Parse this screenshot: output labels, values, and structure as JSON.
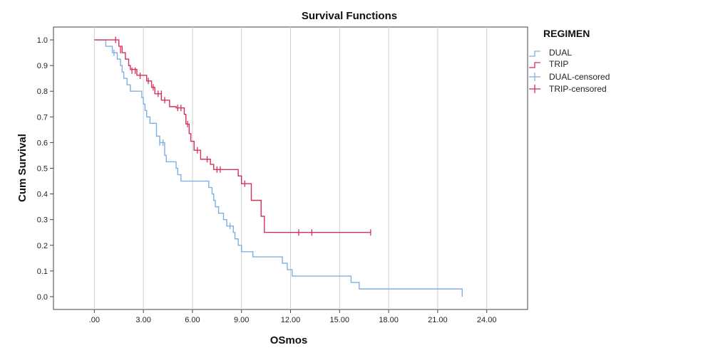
{
  "chart_data": {
    "type": "line",
    "subtype": "kaplan-meier-step",
    "title": "Survival Functions",
    "xlabel": "OSmos",
    "ylabel": "Cum Survival",
    "xlim": [
      -2.5,
      26.5
    ],
    "ylim": [
      -0.05,
      1.05
    ],
    "x_ticks": [
      0,
      3,
      6,
      9,
      12,
      15,
      18,
      21,
      24
    ],
    "x_tick_labels": [
      ".00",
      "3.00",
      "6.00",
      "9.00",
      "12.00",
      "15.00",
      "18.00",
      "21.00",
      "24.00"
    ],
    "y_ticks": [
      0.0,
      0.1,
      0.2,
      0.3,
      0.4,
      0.5,
      0.6,
      0.7,
      0.8,
      0.9,
      1.0
    ],
    "y_tick_labels": [
      "0.0",
      "0.1",
      "0.2",
      "0.3",
      "0.4",
      "0.5",
      "0.6",
      "0.7",
      "0.8",
      "0.9",
      "1.0"
    ],
    "grid": "vertical",
    "legend": {
      "title": "REGIMEN",
      "position": "top-right",
      "entries": [
        "DUAL",
        "TRIP",
        "DUAL-censored",
        "TRIP-censored"
      ]
    },
    "colors": {
      "DUAL": "#7fb0e0",
      "TRIP": "#d6305a"
    },
    "series": [
      {
        "name": "DUAL",
        "color": "#7fb0e0",
        "steps": [
          [
            0,
            1.0
          ],
          [
            0.7,
            0.975
          ],
          [
            1.1,
            0.95
          ],
          [
            1.4,
            0.925
          ],
          [
            1.6,
            0.9
          ],
          [
            1.7,
            0.875
          ],
          [
            1.8,
            0.85
          ],
          [
            2.0,
            0.825
          ],
          [
            2.2,
            0.8
          ],
          [
            2.9,
            0.775
          ],
          [
            3.0,
            0.75
          ],
          [
            3.1,
            0.725
          ],
          [
            3.2,
            0.7
          ],
          [
            3.4,
            0.675
          ],
          [
            3.8,
            0.625
          ],
          [
            4.0,
            0.6
          ],
          [
            4.3,
            0.55
          ],
          [
            4.4,
            0.525
          ],
          [
            5.0,
            0.5
          ],
          [
            5.1,
            0.475
          ],
          [
            5.3,
            0.45
          ],
          [
            7.0,
            0.425
          ],
          [
            7.2,
            0.4
          ],
          [
            7.3,
            0.375
          ],
          [
            7.4,
            0.35
          ],
          [
            7.6,
            0.325
          ],
          [
            7.9,
            0.3
          ],
          [
            8.1,
            0.275
          ],
          [
            8.5,
            0.25
          ],
          [
            8.6,
            0.225
          ],
          [
            8.8,
            0.2
          ],
          [
            9.0,
            0.175
          ],
          [
            9.7,
            0.155
          ],
          [
            11.5,
            0.13
          ],
          [
            11.8,
            0.105
          ],
          [
            12.1,
            0.08
          ],
          [
            15.7,
            0.055
          ],
          [
            16.2,
            0.03
          ],
          [
            22.5,
            0.0
          ]
        ],
        "end_x": 22.5,
        "censored": [
          [
            1.2,
            0.95
          ],
          [
            4.0,
            0.6
          ],
          [
            4.2,
            0.6
          ],
          [
            8.3,
            0.275
          ]
        ]
      },
      {
        "name": "TRIP",
        "color": "#d6305a",
        "steps": [
          [
            0,
            1.0
          ],
          [
            1.5,
            0.975
          ],
          [
            1.7,
            0.95
          ],
          [
            1.9,
            0.925
          ],
          [
            2.1,
            0.9
          ],
          [
            2.2,
            0.885
          ],
          [
            2.6,
            0.862
          ],
          [
            3.2,
            0.84
          ],
          [
            3.5,
            0.815
          ],
          [
            3.7,
            0.79
          ],
          [
            4.1,
            0.765
          ],
          [
            4.6,
            0.74
          ],
          [
            5.0,
            0.735
          ],
          [
            5.5,
            0.71
          ],
          [
            5.6,
            0.672
          ],
          [
            5.8,
            0.635
          ],
          [
            5.9,
            0.605
          ],
          [
            6.1,
            0.57
          ],
          [
            6.5,
            0.535
          ],
          [
            7.1,
            0.515
          ],
          [
            7.3,
            0.495
          ],
          [
            8.8,
            0.47
          ],
          [
            9.0,
            0.44
          ],
          [
            9.6,
            0.375
          ],
          [
            10.2,
            0.313
          ],
          [
            10.4,
            0.25
          ]
        ],
        "end_x": 16.9,
        "censored": [
          [
            1.3,
            1.0
          ],
          [
            1.6,
            0.96
          ],
          [
            2.3,
            0.88
          ],
          [
            2.5,
            0.88
          ],
          [
            2.8,
            0.86
          ],
          [
            3.3,
            0.84
          ],
          [
            3.6,
            0.815
          ],
          [
            3.9,
            0.79
          ],
          [
            4.1,
            0.79
          ],
          [
            4.3,
            0.765
          ],
          [
            5.1,
            0.735
          ],
          [
            5.3,
            0.735
          ],
          [
            5.7,
            0.672
          ],
          [
            6.3,
            0.57
          ],
          [
            6.9,
            0.535
          ],
          [
            7.5,
            0.495
          ],
          [
            7.7,
            0.495
          ],
          [
            9.2,
            0.44
          ],
          [
            12.5,
            0.25
          ],
          [
            13.3,
            0.25
          ],
          [
            16.9,
            0.25
          ]
        ]
      }
    ]
  }
}
